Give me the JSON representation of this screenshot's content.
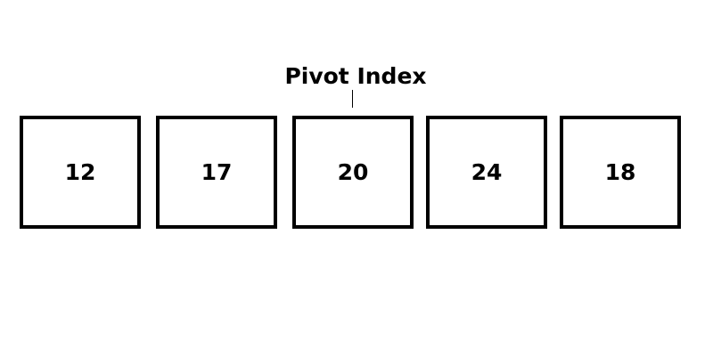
{
  "pivot": {
    "label": "Pivot Index",
    "index": 2
  },
  "array": {
    "values": [
      "12",
      "17",
      "20",
      "24",
      "18"
    ]
  },
  "colors": {
    "stroke": "#000000",
    "background": "#ffffff"
  }
}
